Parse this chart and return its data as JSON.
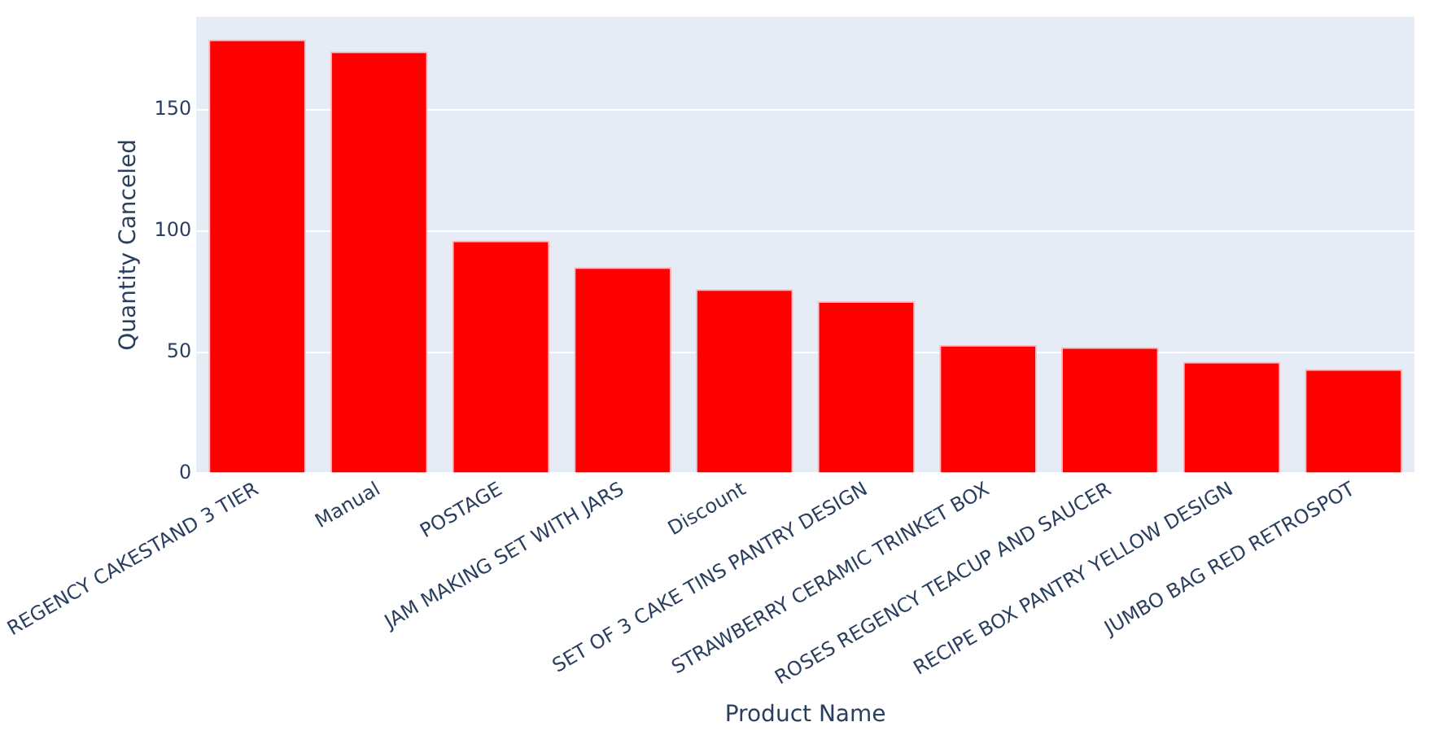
{
  "chart_data": {
    "type": "bar",
    "xlabel": "Product Name",
    "ylabel": "Quantity Canceled",
    "categories": [
      "REGENCY CAKESTAND 3 TIER",
      "Manual",
      "POSTAGE",
      "JAM MAKING SET WITH JARS",
      "Discount",
      "SET OF 3 CAKE TINS PANTRY DESIGN",
      "STRAWBERRY CERAMIC TRINKET BOX",
      "ROSES REGENCY TEACUP AND SAUCER",
      "RECIPE BOX PANTRY YELLOW DESIGN",
      "JUMBO BAG RED RETROSPOT"
    ],
    "values": [
      179,
      174,
      96,
      85,
      76,
      71,
      53,
      52,
      46,
      43
    ],
    "color": "#ff0000",
    "ylim": [
      0,
      188.4
    ],
    "yticks": [
      0,
      50,
      100,
      150
    ],
    "grid": "y",
    "legend": false
  }
}
